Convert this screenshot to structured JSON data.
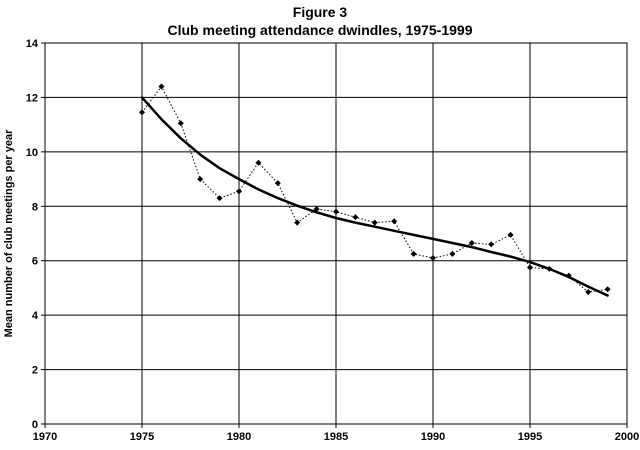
{
  "chart_data": {
    "type": "line",
    "title": "Figure 3",
    "subtitle": "Club meeting attendance dwindles, 1975-1999",
    "xlabel": "",
    "ylabel": "Mean number of club meetings per year",
    "xlim": [
      1970,
      2000
    ],
    "ylim": [
      0,
      14
    ],
    "x_ticks": [
      1970,
      1975,
      1980,
      1985,
      1990,
      1995,
      2000
    ],
    "y_ticks": [
      0,
      2,
      4,
      6,
      8,
      10,
      12,
      14
    ],
    "grid": true,
    "legend": "none",
    "series": [
      {
        "style": "dotted-with-diamond-markers",
        "color": "#000000",
        "x": [
          1975,
          1976,
          1977,
          1978,
          1979,
          1980,
          1981,
          1982,
          1983,
          1984,
          1985,
          1986,
          1987,
          1988,
          1989,
          1990,
          1991,
          1992,
          1993,
          1994,
          1995,
          1996,
          1997,
          1998,
          1999
        ],
        "y": [
          11.45,
          12.4,
          11.05,
          9.0,
          8.3,
          8.55,
          9.6,
          8.85,
          7.4,
          7.9,
          7.8,
          7.6,
          7.4,
          7.45,
          6.25,
          6.1,
          6.25,
          6.65,
          6.6,
          6.95,
          5.75,
          5.7,
          5.45,
          4.85,
          4.95
        ]
      },
      {
        "style": "solid-thick-trend",
        "color": "#000000",
        "x": [
          1975,
          1976,
          1977,
          1978,
          1979,
          1980,
          1981,
          1982,
          1983,
          1984,
          1985,
          1986,
          1987,
          1988,
          1989,
          1990,
          1991,
          1992,
          1993,
          1994,
          1995,
          1996,
          1997,
          1998,
          1999
        ],
        "y": [
          12.0,
          11.2,
          10.5,
          9.9,
          9.4,
          9.0,
          8.62,
          8.3,
          8.02,
          7.78,
          7.57,
          7.4,
          7.25,
          7.1,
          6.95,
          6.8,
          6.65,
          6.5,
          6.32,
          6.15,
          5.95,
          5.7,
          5.4,
          5.05,
          4.72
        ]
      }
    ]
  }
}
